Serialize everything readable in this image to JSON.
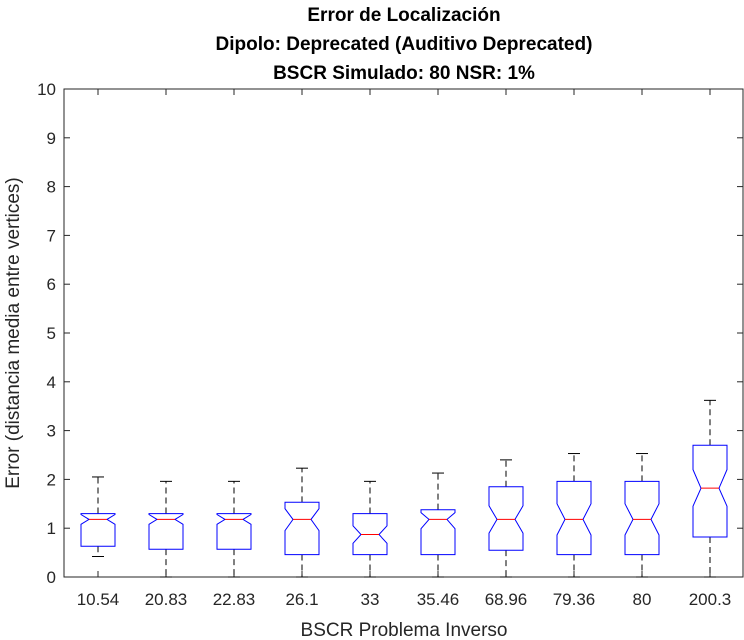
{
  "chart_data": {
    "type": "box",
    "title_lines": [
      "Error de Localización",
      "Dipolo: Deprecated (Auditivo Deprecated)",
      "BSCR Simulado: 80 NSR: 1%"
    ],
    "xlabel": "BSCR Problema Inverso",
    "ylabel": "Error (distancia media entre vertices)",
    "ylim": [
      0,
      10
    ],
    "yticks": [
      "0",
      "1",
      "2",
      "3",
      "4",
      "5",
      "6",
      "7",
      "8",
      "9",
      "10"
    ],
    "notched": true,
    "grid": false,
    "categories": [
      "10.54",
      "20.83",
      "22.83",
      "26.1",
      "33",
      "35.46",
      "68.96",
      "79.36",
      "80",
      "200.3"
    ],
    "boxes": [
      {
        "whisker_low": 0.42,
        "q1": 0.63,
        "median": 1.18,
        "q3": 1.3,
        "whisker_high": 2.05,
        "notch_low": 1.08,
        "notch_high": 1.28
      },
      {
        "whisker_low": 0.0,
        "q1": 0.57,
        "median": 1.18,
        "q3": 1.3,
        "whisker_high": 1.96,
        "notch_low": 1.08,
        "notch_high": 1.28
      },
      {
        "whisker_low": 0.0,
        "q1": 0.57,
        "median": 1.18,
        "q3": 1.3,
        "whisker_high": 1.96,
        "notch_low": 1.08,
        "notch_high": 1.28
      },
      {
        "whisker_low": 0.0,
        "q1": 0.46,
        "median": 1.18,
        "q3": 1.53,
        "whisker_high": 2.23,
        "notch_low": 0.95,
        "notch_high": 1.4
      },
      {
        "whisker_low": 0.0,
        "q1": 0.46,
        "median": 0.87,
        "q3": 1.3,
        "whisker_high": 1.96,
        "notch_low": 0.69,
        "notch_high": 1.05
      },
      {
        "whisker_low": 0.0,
        "q1": 0.46,
        "median": 1.18,
        "q3": 1.38,
        "whisker_high": 2.13,
        "notch_low": 0.99,
        "notch_high": 1.32
      },
      {
        "whisker_low": 0.0,
        "q1": 0.55,
        "median": 1.18,
        "q3": 1.85,
        "whisker_high": 2.4,
        "notch_low": 0.9,
        "notch_high": 1.46
      },
      {
        "whisker_low": 0.0,
        "q1": 0.46,
        "median": 1.18,
        "q3": 1.96,
        "whisker_high": 2.53,
        "notch_low": 0.86,
        "notch_high": 1.5
      },
      {
        "whisker_low": 0.0,
        "q1": 0.46,
        "median": 1.18,
        "q3": 1.96,
        "whisker_high": 2.53,
        "notch_low": 0.86,
        "notch_high": 1.5
      },
      {
        "whisker_low": 0.0,
        "q1": 0.82,
        "median": 1.82,
        "q3": 2.7,
        "whisker_high": 3.62,
        "notch_low": 1.45,
        "notch_high": 2.2
      }
    ],
    "colors": {
      "box": "#0000ff",
      "median": "#ff0000",
      "whisker": "#000000",
      "axis": "#262626"
    }
  }
}
